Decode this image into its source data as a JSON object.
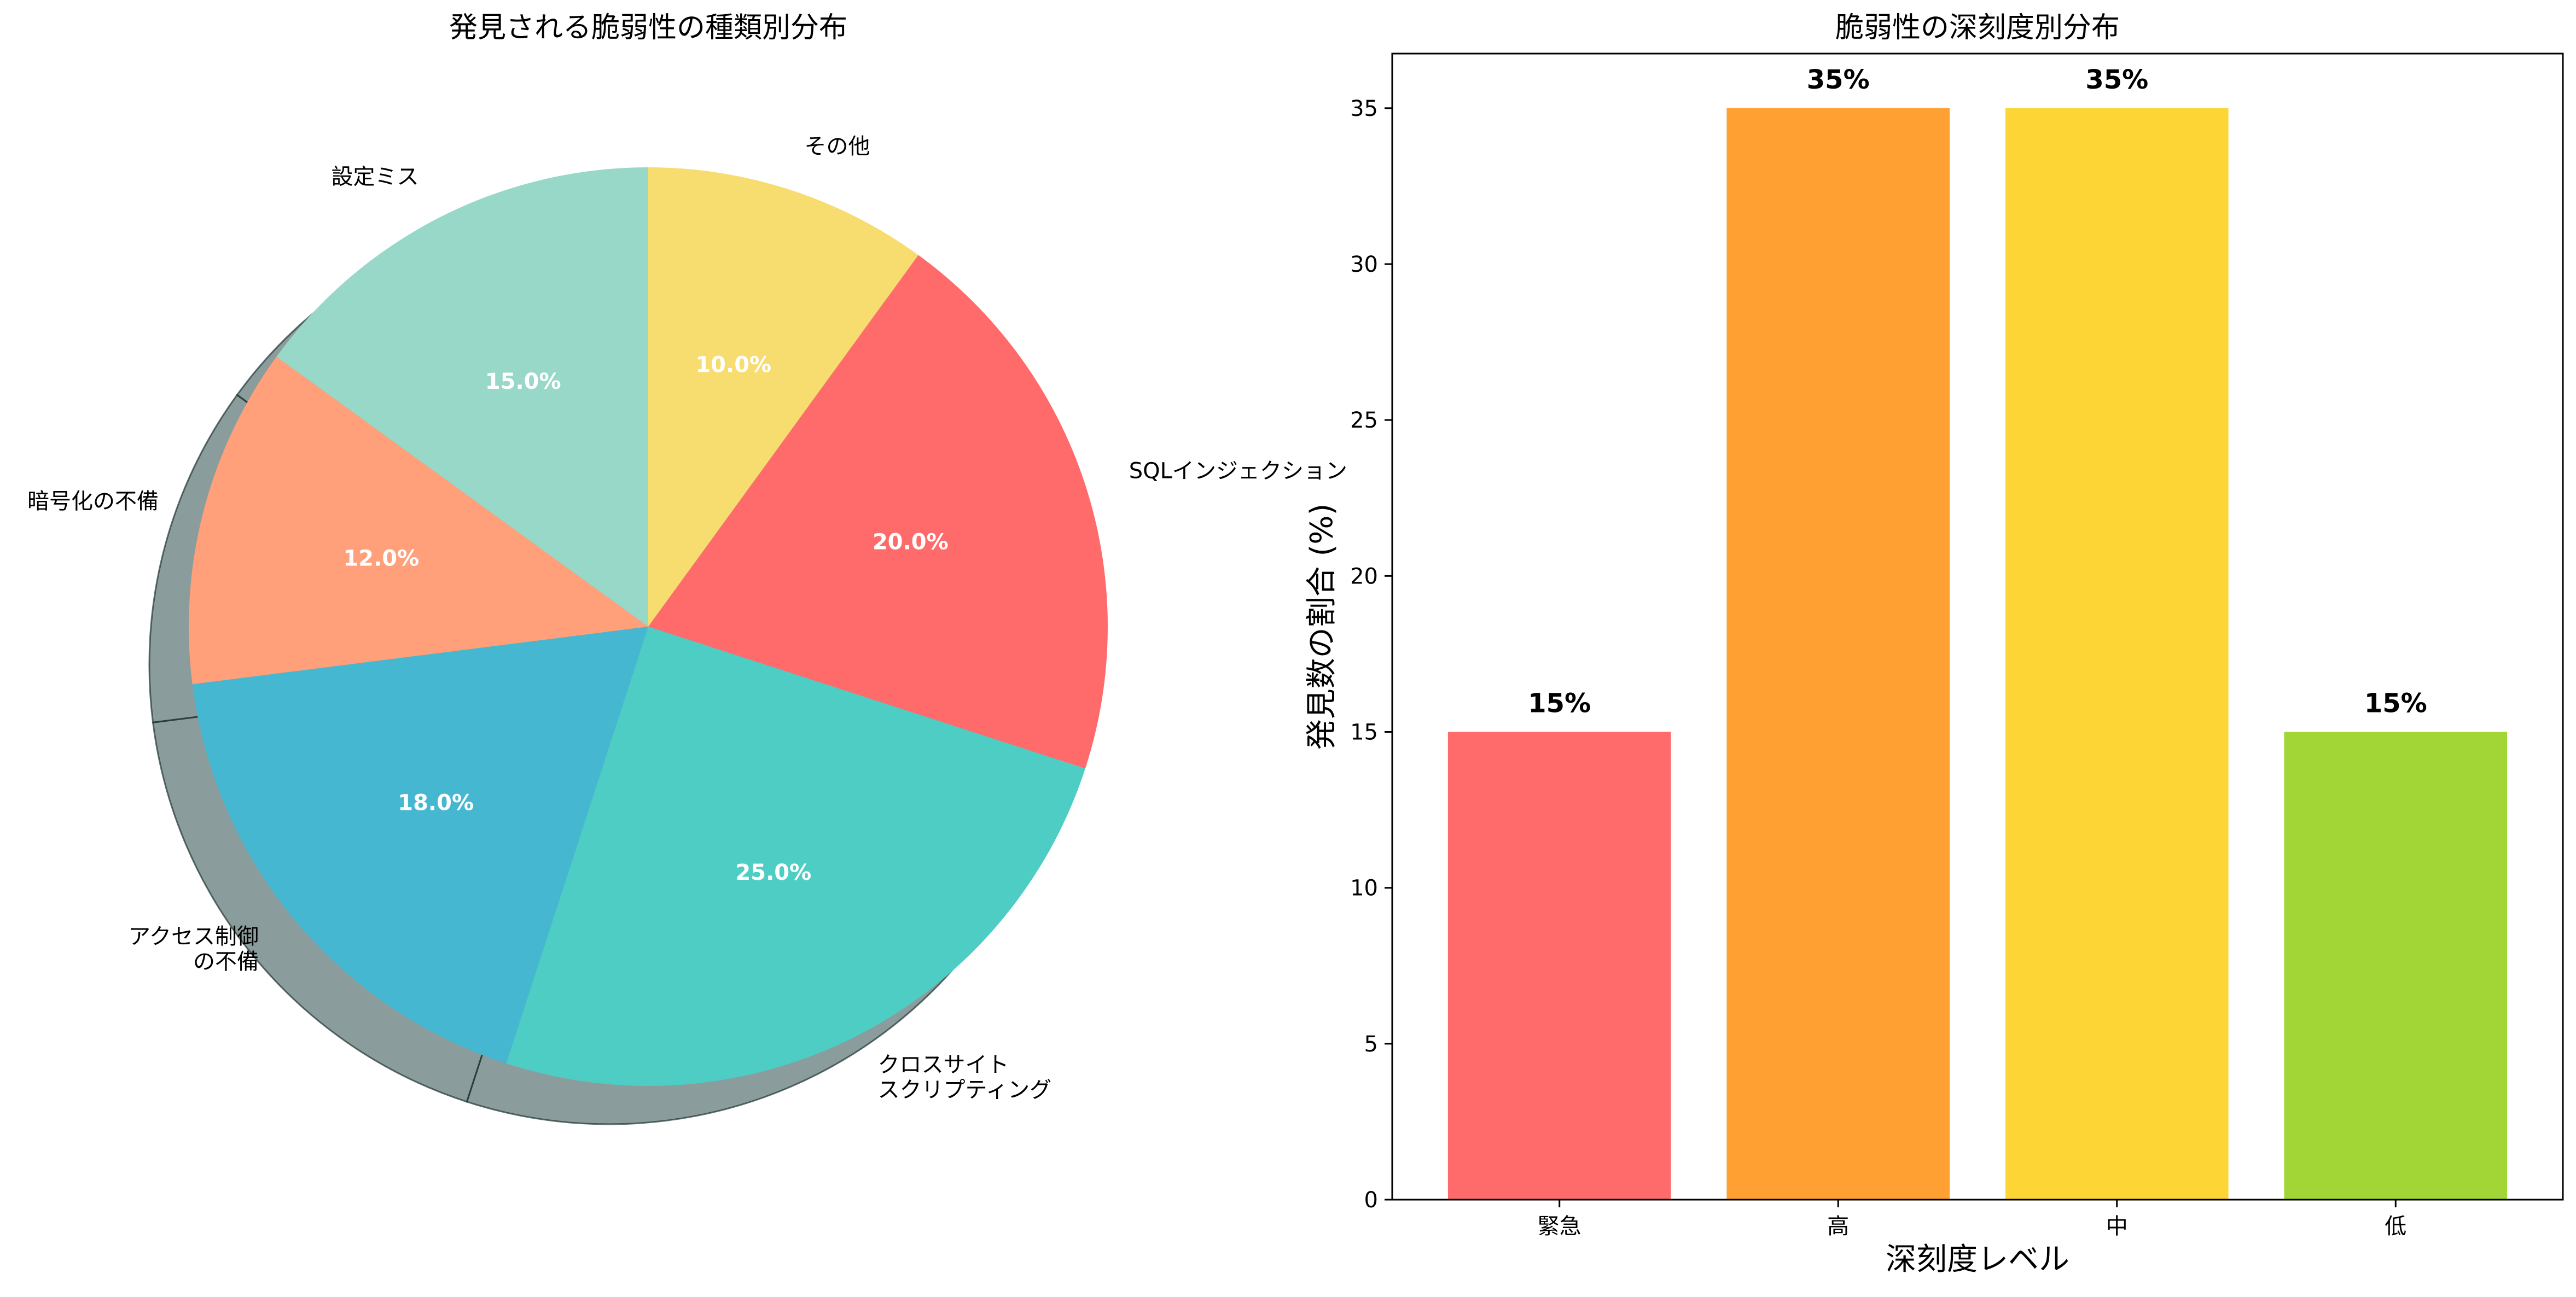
{
  "chart_data": [
    {
      "type": "pie",
      "title": "発見される脆弱性の種類別分布",
      "shadow": true,
      "slices": [
        {
          "label": "その他",
          "value": 10.0,
          "pct_label": "10.0%",
          "color": "#F7DC6F"
        },
        {
          "label": "SQLインジェクション",
          "value": 20.0,
          "pct_label": "20.0%",
          "color": "#FF6B6B"
        },
        {
          "label": "クロスサイト\nスクリプティング",
          "value": 25.0,
          "pct_label": "25.0%",
          "color": "#4ECDC4"
        },
        {
          "label": "アクセス制御\nの不備",
          "value": 18.0,
          "pct_label": "18.0%",
          "color": "#45B7D1"
        },
        {
          "label": "暗号化の不備",
          "value": 12.0,
          "pct_label": "12.0%",
          "color": "#FFA07A"
        },
        {
          "label": "設定ミス",
          "value": 15.0,
          "pct_label": "15.0%",
          "color": "#98D8C8"
        }
      ]
    },
    {
      "type": "bar",
      "title": "脆弱性の深刻度別分布",
      "xlabel": "深刻度レベル",
      "ylabel": "発見数の割合 (%)",
      "categories": [
        "緊急",
        "高",
        "中",
        "低"
      ],
      "values": [
        15,
        35,
        35,
        15
      ],
      "value_labels": [
        "15%",
        "35%",
        "35%",
        "15%"
      ],
      "colors": [
        "#FF6B6B",
        "#FFA033",
        "#FDD535",
        "#A2D636"
      ],
      "ylim": [
        0,
        36.75
      ],
      "yticks": [
        0,
        5,
        10,
        15,
        20,
        25,
        30,
        35
      ]
    }
  ]
}
